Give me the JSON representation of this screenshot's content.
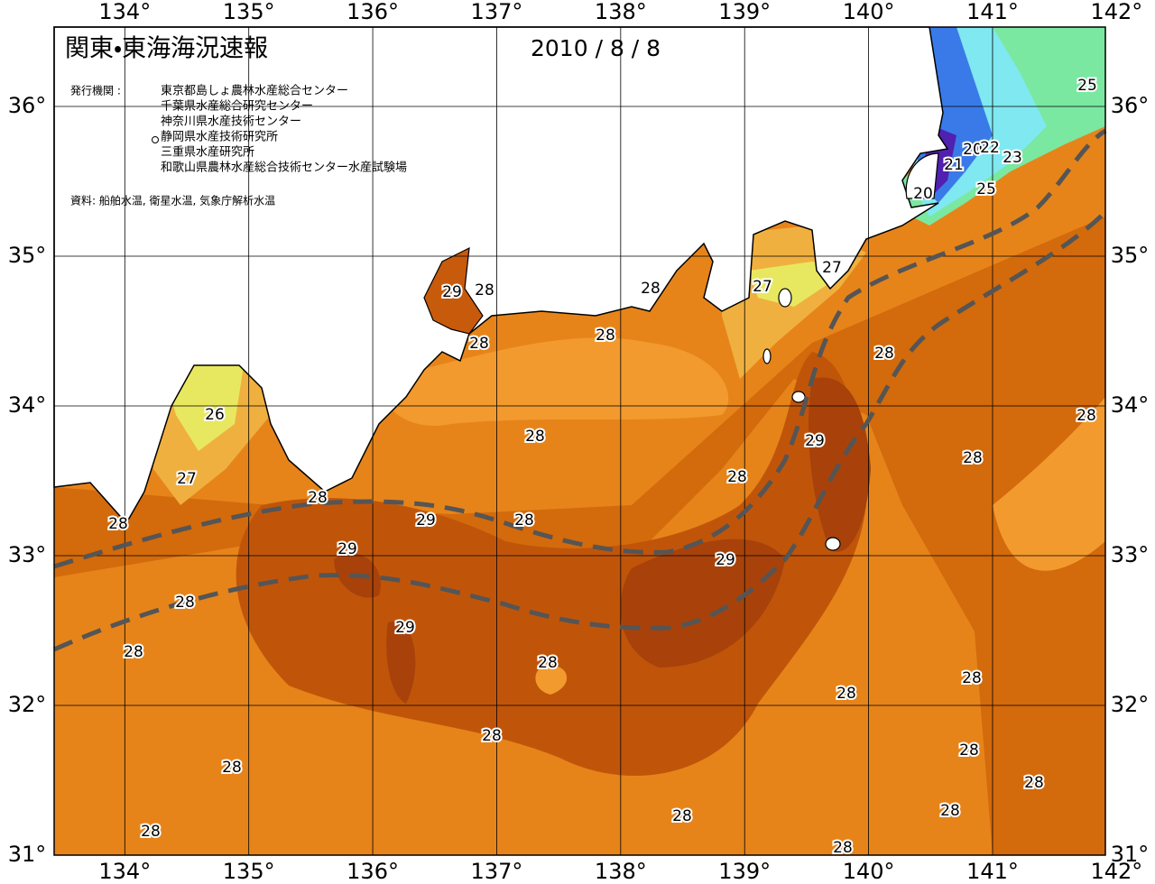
{
  "header": {
    "title": "関東・東海海況速報",
    "date": "2010 / 8 / 8",
    "publisher_heading": "発行機関 :",
    "publishers": [
      "東京都島しょ農林水産総合センター",
      "千葉県水産総合研究センター",
      "神奈川県水産技術センター",
      "静岡県水産技術研究所",
      "三重県水産研究所",
      "和歌山県農林水産総合技術センター水産試験場"
    ],
    "source": "資料: 船舶水温, 衛星水温, 気象庁解析水温"
  },
  "map": {
    "lon_range": [
      133.43,
      141.91
    ],
    "lat_range": [
      31,
      36.53
    ],
    "lon_ticks": [
      {
        "value": 134,
        "label": "134°"
      },
      {
        "value": 135,
        "label": "135°"
      },
      {
        "value": 136,
        "label": "136°"
      },
      {
        "value": 137,
        "label": "137°"
      },
      {
        "value": 138,
        "label": "138°"
      },
      {
        "value": 139,
        "label": "139°"
      },
      {
        "value": 140,
        "label": "140°"
      },
      {
        "value": 141,
        "label": "141°"
      },
      {
        "value": 142,
        "label": "142°"
      }
    ],
    "lat_ticks": [
      {
        "value": 31,
        "label": "31°"
      },
      {
        "value": 32,
        "label": "32°"
      },
      {
        "value": 33,
        "label": "33°"
      },
      {
        "value": 34,
        "label": "34°"
      },
      {
        "value": 35,
        "label": "35°"
      },
      {
        "value": 36,
        "label": "36°"
      }
    ],
    "contour_labels": [
      25,
      21,
      20,
      22,
      23,
      20,
      25,
      27,
      27,
      28,
      29,
      28,
      28,
      28,
      28,
      26,
      28,
      29,
      28,
      28,
      27,
      28,
      28,
      29,
      28,
      28,
      29,
      29,
      28,
      29,
      28,
      28,
      28,
      28,
      28,
      28,
      28,
      28,
      28,
      28,
      28,
      28
    ]
  }
}
